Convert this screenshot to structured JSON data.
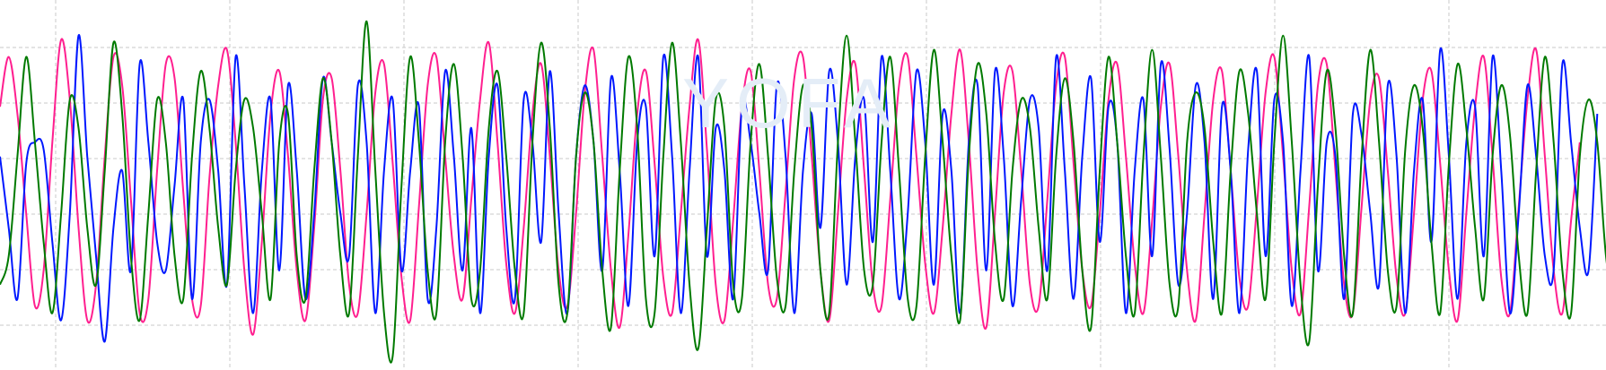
{
  "watermark": "YOFA",
  "colors": {
    "background": "#ffffff",
    "grid": "#c8c8c8",
    "series_1": "#ff1f8f",
    "series_2": "#0018ff",
    "series_3": "#007a00"
  },
  "chart_data": {
    "type": "line",
    "title": "",
    "xlabel": "",
    "ylabel": "",
    "grid": true,
    "legend": "none",
    "xlim": [
      0,
      184
    ],
    "ylim": [
      -1.3,
      1.3
    ],
    "series": [
      {
        "color": "#ff1f8f",
        "values": [
          0.55,
          0.9,
          0.5,
          -0.2,
          -0.85,
          -0.6,
          0.3,
          1.02,
          0.6,
          -0.3,
          -0.95,
          -0.7,
          0.2,
          0.9,
          0.7,
          -0.1,
          -0.9,
          -0.8,
          0.1,
          0.85,
          0.75,
          -0.05,
          -0.8,
          -0.85,
          0.05,
          0.7,
          0.95,
          0.3,
          -0.6,
          -1.05,
          -0.4,
          0.5,
          0.8,
          0.2,
          -0.6,
          -0.95,
          -0.3,
          0.6,
          0.75,
          0.1,
          -0.7,
          -0.9,
          -0.2,
          0.65,
          0.85,
          0.15,
          -0.65,
          -0.95,
          -0.15,
          0.7,
          0.9,
          0.2,
          -0.5,
          -0.8,
          -0.1,
          0.6,
          1.0,
          0.3,
          -0.55,
          -0.9,
          -0.3,
          0.5,
          0.85,
          0.2,
          -0.6,
          -0.85,
          -0.2,
          0.65,
          0.95,
          0.2,
          -0.6,
          -1.0,
          -0.35,
          0.5,
          0.8,
          0.15,
          -0.65,
          -0.9,
          -0.2,
          0.55,
          1.02,
          0.25,
          -0.7,
          -0.95,
          -0.25,
          0.55,
          0.8,
          0.1,
          -0.7,
          -0.8,
          -0.05,
          0.75,
          0.9,
          0.2,
          -0.6,
          -0.95,
          -0.2,
          0.6,
          0.85,
          0.1,
          -0.7,
          -0.85,
          -0.1,
          0.7,
          0.9,
          0.2,
          -0.55,
          -0.9,
          -0.3,
          0.5,
          0.95,
          0.3,
          -0.6,
          -1.0,
          -0.2,
          0.65,
          0.8,
          0.1,
          -0.7,
          -0.85,
          -0.1,
          0.7,
          0.9,
          0.15,
          -0.6,
          -0.85,
          -0.2,
          0.6,
          0.85,
          0.2,
          -0.55,
          -0.9,
          -0.25,
          0.55,
          0.85,
          0.2,
          -0.6,
          -0.95,
          -0.2,
          0.6,
          0.8,
          0.1,
          -0.65,
          -0.85,
          -0.15,
          0.65,
          0.9,
          0.2,
          -0.6,
          -0.9,
          -0.15,
          0.7,
          0.85,
          0.1,
          -0.7,
          -0.9,
          -0.15,
          0.6,
          0.75,
          0.1,
          -0.65,
          -0.9,
          -0.2,
          0.6,
          0.8,
          0.15,
          -0.6,
          -0.95,
          -0.2,
          0.55,
          0.9,
          0.2,
          -0.65,
          -0.9,
          -0.15,
          0.6,
          0.95,
          0.2,
          -0.6,
          -0.9,
          -0.25,
          0.3
        ]
      },
      {
        "color": "#0018ff",
        "values": [
          0.2,
          -0.3,
          -0.8,
          0.15,
          0.3,
          0.25,
          -0.4,
          -0.95,
          -0.2,
          1.05,
          0.2,
          -0.5,
          -1.1,
          -0.3,
          0.1,
          -0.6,
          0.85,
          0.3,
          -0.4,
          -0.6,
          0.0,
          0.6,
          -0.8,
          0.3,
          0.6,
          0.1,
          -0.7,
          0.9,
          0.0,
          -0.9,
          0.1,
          0.6,
          -0.6,
          0.7,
          0.1,
          -0.8,
          -0.2,
          0.75,
          0.3,
          -0.2,
          -0.5,
          0.7,
          0.3,
          -0.9,
          0.1,
          0.6,
          -0.6,
          0.1,
          0.55,
          -0.8,
          -0.3,
          0.8,
          0.2,
          -0.6,
          0.4,
          -0.9,
          0.2,
          0.7,
          -0.3,
          -0.8,
          0.6,
          0.3,
          -0.4,
          0.8,
          -0.2,
          -0.9,
          0.2,
          0.7,
          0.3,
          -0.6,
          0.75,
          0.1,
          -0.85,
          0.3,
          0.55,
          -0.5,
          0.9,
          0.2,
          -0.9,
          0.1,
          0.9,
          -0.5,
          0.4,
          0.1,
          -0.8,
          0.55,
          0.3,
          -0.2,
          -0.6,
          0.7,
          0.2,
          -0.9,
          0.1,
          0.5,
          -0.3,
          0.8,
          0.3,
          -0.7,
          0.2,
          0.6,
          -0.4,
          0.9,
          0.1,
          -0.8,
          -0.2,
          0.8,
          0.3,
          -0.7,
          0.5,
          0.1,
          -0.9,
          0.3,
          0.7,
          -0.6,
          0.8,
          0.2,
          -0.85,
          -0.1,
          0.6,
          0.4,
          -0.6,
          0.9,
          0.1,
          -0.8,
          0.2,
          0.75,
          -0.4,
          0.55,
          0.3,
          -0.9,
          0.1,
          0.6,
          -0.5,
          0.85,
          0.25,
          -0.7,
          -0.2,
          0.7,
          0.3,
          -0.8,
          0.55,
          0.1,
          -0.9,
          0.25,
          0.8,
          -0.5,
          0.6,
          0.3,
          -0.85,
          0.1,
          0.9,
          -0.6,
          0.3,
          0.2,
          -0.8,
          0.5,
          0.35,
          -0.2,
          -0.7,
          0.7,
          0.2,
          -0.9,
          0.1,
          0.6,
          -0.4,
          0.95,
          0.2,
          -0.8,
          0.3,
          0.55,
          -0.5,
          0.9,
          0.1,
          -0.9,
          -0.2,
          0.7,
          0.2,
          -0.5,
          -0.6,
          0.85,
          0.3,
          -0.3,
          -0.6,
          0.5
        ]
      },
      {
        "color": "#007a00",
        "values": [
          -0.7,
          -0.5,
          0.2,
          0.9,
          0.3,
          -0.4,
          -0.9,
          -0.2,
          0.6,
          0.4,
          -0.3,
          -0.7,
          0.1,
          1.0,
          0.5,
          -0.5,
          -0.95,
          -0.2,
          0.6,
          0.3,
          -0.5,
          -0.8,
          0.2,
          0.8,
          0.4,
          -0.3,
          -0.7,
          0.1,
          0.6,
          0.4,
          -0.2,
          -0.8,
          0.3,
          0.5,
          -0.5,
          -0.8,
          0.1,
          0.75,
          0.3,
          -0.5,
          -0.9,
          0.2,
          1.15,
          0.1,
          -0.9,
          -1.2,
          0.0,
          0.9,
          0.3,
          -0.6,
          -0.9,
          0.3,
          0.85,
          0.2,
          -0.8,
          -0.6,
          0.4,
          0.8,
          0.2,
          -0.6,
          -0.9,
          0.3,
          1.0,
          0.4,
          -0.7,
          -0.9,
          0.2,
          0.65,
          0.3,
          -0.6,
          -1.0,
          0.1,
          0.9,
          0.4,
          -0.8,
          -0.9,
          0.2,
          1.0,
          0.3,
          -0.7,
          -1.15,
          -0.3,
          0.6,
          0.4,
          -0.7,
          -0.8,
          0.3,
          0.85,
          0.2,
          -0.65,
          -0.85,
          0.1,
          0.7,
          0.4,
          -0.6,
          -0.9,
          0.3,
          1.05,
          0.3,
          -0.6,
          -0.7,
          0.3,
          0.9,
          0.1,
          -0.8,
          -0.85,
          0.2,
          0.95,
          0.3,
          -0.5,
          -0.95,
          0.2,
          0.85,
          0.5,
          -0.4,
          -0.8,
          0.1,
          0.6,
          0.4,
          -0.3,
          -0.8,
          0.2,
          0.75,
          0.3,
          -0.6,
          -1.0,
          0.1,
          0.9,
          0.3,
          -0.5,
          -0.9,
          0.2,
          0.95,
          0.2,
          -0.7,
          -0.85,
          0.3,
          0.65,
          0.4,
          -0.4,
          -0.9,
          0.1,
          0.8,
          0.5,
          -0.2,
          -0.8,
          0.3,
          1.05,
          0.3,
          -0.7,
          -1.1,
          0.0,
          0.8,
          0.4,
          -0.5,
          -0.9,
          0.2,
          0.95,
          0.3,
          -0.6,
          -0.85,
          0.25,
          0.7,
          0.4,
          -0.4,
          -0.9,
          0.15,
          0.85,
          0.4,
          -0.3,
          -0.8,
          0.2,
          0.7,
          0.35,
          -0.5,
          -0.9,
          0.1,
          0.9,
          0.3,
          -0.6,
          -0.9,
          0.2,
          0.6,
          0.3,
          -0.5,
          -0.8,
          -0.6
        ]
      }
    ]
  }
}
